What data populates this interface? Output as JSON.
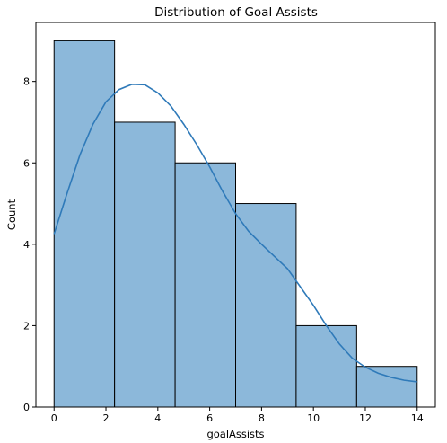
{
  "chart_data": {
    "type": "bar",
    "title": "Distribution of Goal Assists",
    "xlabel": "goalAssists",
    "ylabel": "Count",
    "bins": [
      {
        "start": 0,
        "end": 2.333,
        "count": 9
      },
      {
        "start": 2.333,
        "end": 4.667,
        "count": 7
      },
      {
        "start": 4.667,
        "end": 7.0,
        "count": 6
      },
      {
        "start": 7.0,
        "end": 9.333,
        "count": 5
      },
      {
        "start": 9.333,
        "end": 11.667,
        "count": 2
      },
      {
        "start": 11.667,
        "end": 14.0,
        "count": 1
      }
    ],
    "kde": {
      "x": [
        0,
        0.5,
        1,
        1.5,
        2,
        2.5,
        3,
        3.5,
        4,
        4.5,
        5,
        5.5,
        6,
        6.5,
        7,
        7.5,
        8,
        8.5,
        9,
        9.5,
        10,
        10.5,
        11,
        11.5,
        12,
        12.5,
        13,
        13.5,
        14
      ],
      "y": [
        4.25,
        5.25,
        6.2,
        6.95,
        7.5,
        7.8,
        7.93,
        7.92,
        7.72,
        7.4,
        6.95,
        6.45,
        5.9,
        5.3,
        4.75,
        4.32,
        4.0,
        3.7,
        3.4,
        2.95,
        2.5,
        2.0,
        1.55,
        1.2,
        0.98,
        0.83,
        0.73,
        0.66,
        0.62
      ]
    },
    "xlim": [
      -0.7,
      14.7
    ],
    "ylim": [
      0,
      9.45
    ],
    "xticks": [
      0,
      2,
      4,
      6,
      8,
      10,
      12,
      14
    ],
    "yticks": [
      0,
      2,
      4,
      6,
      8
    ],
    "bar_color": "#8cb8da",
    "edge_color": "#000000",
    "line_color": "#2f7ab9",
    "grid": false,
    "legend": "none"
  }
}
